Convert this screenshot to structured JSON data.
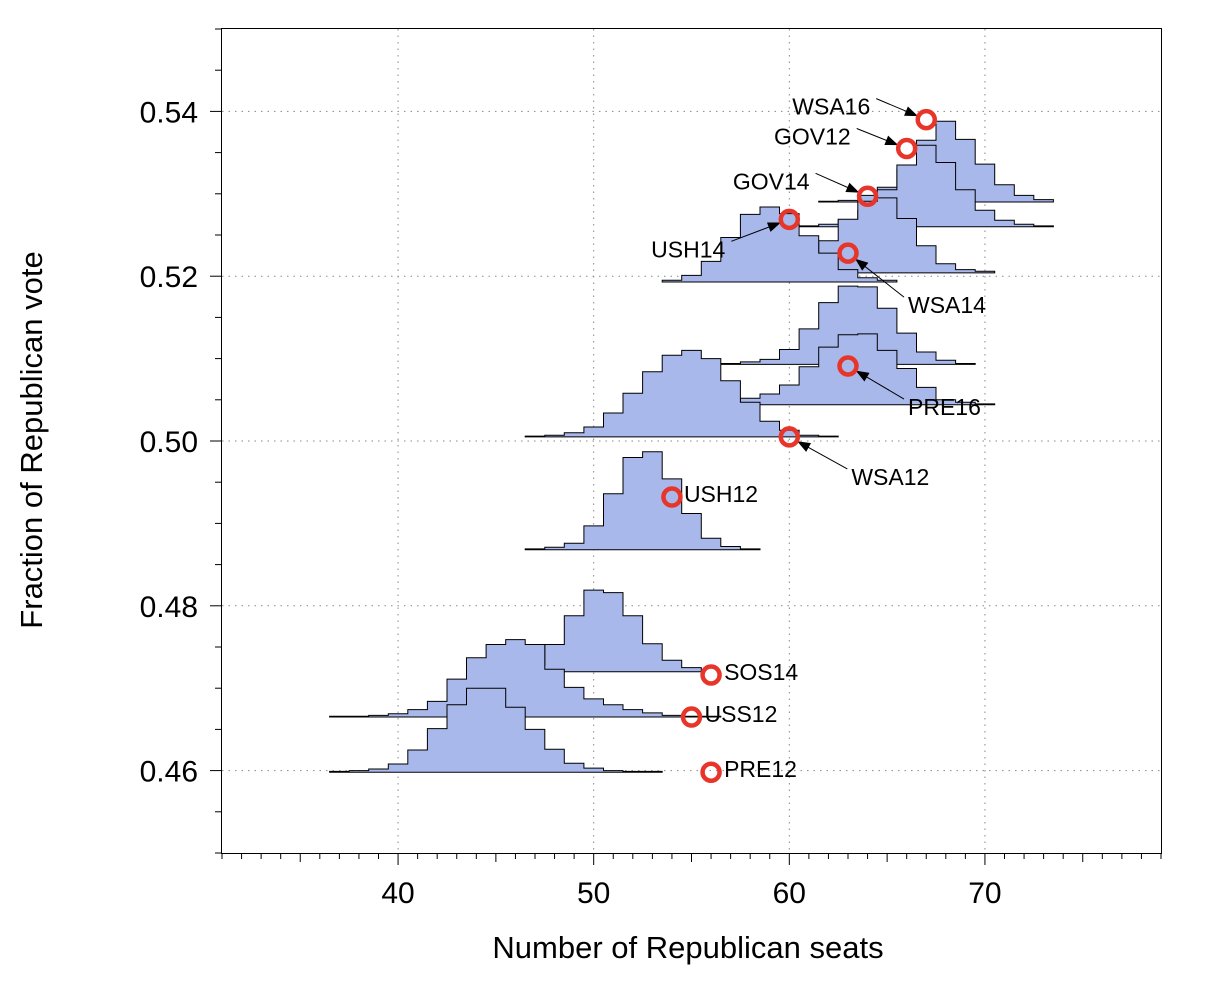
{
  "chart_data": {
    "type": "scatter",
    "title": "",
    "xlabel": "Number of Republican seats",
    "ylabel": "Fraction of Republican vote",
    "xlim": [
      31,
      79
    ],
    "ylim": [
      0.45,
      0.55
    ],
    "x_ticks": [
      "40",
      "50",
      "60",
      "70"
    ],
    "y_ticks": [
      "0.46",
      "0.48",
      "0.50",
      "0.52",
      "0.54"
    ],
    "grid": "dotted",
    "marker_color": "#e8352a",
    "histogram_fill": "#a8b8ea",
    "elections": [
      {
        "label": "WSA16",
        "seats": 67,
        "vote": 0.539
      },
      {
        "label": "GOV12",
        "seats": 66,
        "vote": 0.5355
      },
      {
        "label": "GOV14",
        "seats": 64,
        "vote": 0.5297
      },
      {
        "label": "USH14",
        "seats": 60,
        "vote": 0.5269
      },
      {
        "label": "WSA14",
        "seats": 63,
        "vote": 0.5228
      },
      {
        "label": "PRE16",
        "seats": 63,
        "vote": 0.5091
      },
      {
        "label": "WSA12",
        "seats": 60,
        "vote": 0.5005
      },
      {
        "label": "USH12",
        "seats": 54,
        "vote": 0.4932
      },
      {
        "label": "SOS14",
        "seats": 56,
        "vote": 0.4716
      },
      {
        "label": "USS12",
        "seats": 55,
        "vote": 0.4665
      },
      {
        "label": "PRE12",
        "seats": 56,
        "vote": 0.4598
      }
    ],
    "seat_distributions": [
      {
        "for": "WSA16",
        "baseline": 0.529,
        "start": 61.5,
        "end": 73.5,
        "heights": [
          0.0001,
          0.0002,
          0.0008,
          0.0018,
          0.004,
          0.0075,
          0.0098,
          0.0076,
          0.0046,
          0.0021,
          0.0008,
          0.0003
        ]
      },
      {
        "for": "GOV12",
        "baseline": 0.526,
        "start": 60.5,
        "end": 73.5,
        "heights": [
          0.0001,
          0.0003,
          0.0008,
          0.002,
          0.0045,
          0.0075,
          0.0099,
          0.0078,
          0.0045,
          0.002,
          0.0008,
          0.0003,
          0.0001
        ]
      },
      {
        "for": "GOV14",
        "baseline": 0.5204,
        "start": 57.5,
        "end": 70.5,
        "heights": [
          0.0001,
          0.0003,
          0.0008,
          0.0017,
          0.0039,
          0.0065,
          0.0087,
          0.0091,
          0.0066,
          0.0033,
          0.0011,
          0.0004,
          0.0002
        ]
      },
      {
        "for": "USH14",
        "baseline": 0.5193,
        "start": 53.5,
        "end": 65.5,
        "heights": [
          0.0002,
          0.0008,
          0.0025,
          0.0054,
          0.0082,
          0.0091,
          0.0083,
          0.0056,
          0.0035,
          0.0015,
          0.0005,
          0.0002
        ]
      },
      {
        "for": "WSA14",
        "baseline": 0.5093,
        "start": 56.5,
        "end": 69.5,
        "heights": [
          0.0001,
          0.0003,
          0.0006,
          0.0018,
          0.0043,
          0.0075,
          0.0095,
          0.0094,
          0.0068,
          0.0038,
          0.0015,
          0.0005,
          0.0001
        ]
      },
      {
        "for": "PRE16",
        "baseline": 0.5044,
        "start": 54.5,
        "end": 70.5,
        "heights": [
          0.0001,
          0.0002,
          0.0004,
          0.0008,
          0.0013,
          0.0024,
          0.0046,
          0.007,
          0.0085,
          0.0086,
          0.0066,
          0.0044,
          0.0021,
          0.0006,
          0.0003,
          0.0001
        ]
      },
      {
        "for": "WSA12",
        "baseline": 0.5005,
        "start": 46.5,
        "end": 62.5,
        "heights": [
          0.0001,
          0.0002,
          0.0005,
          0.0012,
          0.0029,
          0.0053,
          0.0079,
          0.0099,
          0.0105,
          0.0095,
          0.0068,
          0.0042,
          0.0019,
          0.0008,
          0.0002,
          0.0001
        ]
      },
      {
        "for": "USH12",
        "baseline": 0.4868,
        "start": 46.5,
        "end": 58.5,
        "heights": [
          0.0001,
          0.0003,
          0.0008,
          0.0029,
          0.0068,
          0.0112,
          0.0119,
          0.0086,
          0.0044,
          0.0014,
          0.0004,
          0.0001
        ]
      },
      {
        "for": "SOS14",
        "baseline": 0.472,
        "start": 46.5,
        "end": 55.5,
        "heights": [
          0.0008,
          0.0033,
          0.0068,
          0.0099,
          0.0096,
          0.0068,
          0.0034,
          0.0014,
          0.0005
        ]
      },
      {
        "for": "USS12",
        "baseline": 0.4665,
        "start": 36.5,
        "end": 56.5,
        "heights": [
          0.0001,
          0.0001,
          0.0002,
          0.0004,
          0.0009,
          0.0019,
          0.0046,
          0.0072,
          0.0088,
          0.0094,
          0.0088,
          0.0058,
          0.0036,
          0.0022,
          0.0015,
          0.0009,
          0.0005,
          0.0002,
          0.0001,
          0.0001
        ]
      },
      {
        "for": "PRE12",
        "baseline": 0.4598,
        "start": 36.5,
        "end": 53.5,
        "heights": [
          0.0001,
          0.0002,
          0.0004,
          0.001,
          0.0027,
          0.0053,
          0.0082,
          0.0102,
          0.0102,
          0.0079,
          0.0052,
          0.0028,
          0.0011,
          0.0005,
          0.0002,
          0.0001,
          0.0001
        ]
      }
    ]
  }
}
